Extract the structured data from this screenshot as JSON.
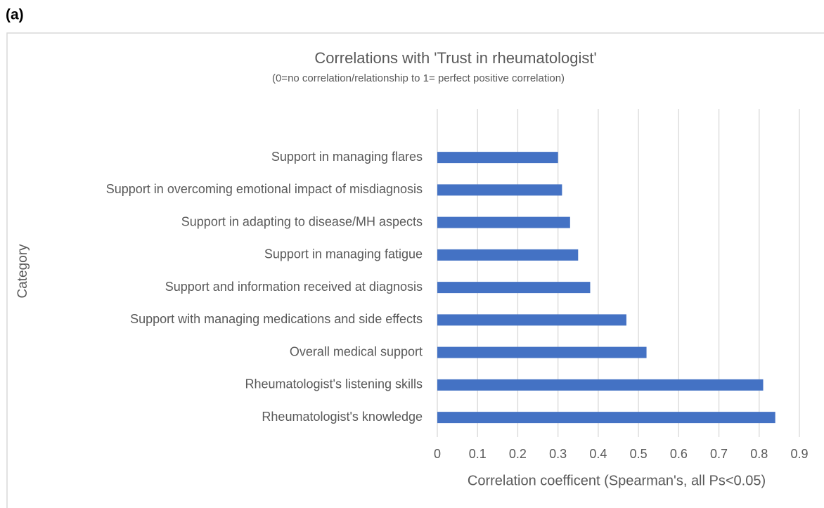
{
  "panel_label": "(a)",
  "chart_data": {
    "type": "barh",
    "title": "Correlations with 'Trust in rheumatologist'",
    "subtitle": "(0=no correlation/relationship to 1= perfect positive correlation)",
    "x_label": "Correlation coefficent  (Spearman's, all Ps<0.05)",
    "y_label": "Category",
    "categories": [
      "Support in managing flares",
      "Support in overcoming emotional impact of misdiagnosis",
      "Support in adapting to disease/MH aspects",
      "Support in managing fatigue",
      "Support and information received at diagnosis",
      "Support with managing medications and side effects",
      "Overall medical support",
      "Rheumatologist's listening skills",
      "Rheumatologist's knowledge"
    ],
    "values": [
      0.3,
      0.31,
      0.33,
      0.35,
      0.38,
      0.47,
      0.52,
      0.81,
      0.84
    ],
    "color": "#4472c4",
    "xlim": [
      0,
      0.9
    ],
    "xticks": [
      0,
      0.1,
      0.2,
      0.3,
      0.4,
      0.5,
      0.6,
      0.7,
      0.8,
      0.9
    ],
    "grid": true
  }
}
